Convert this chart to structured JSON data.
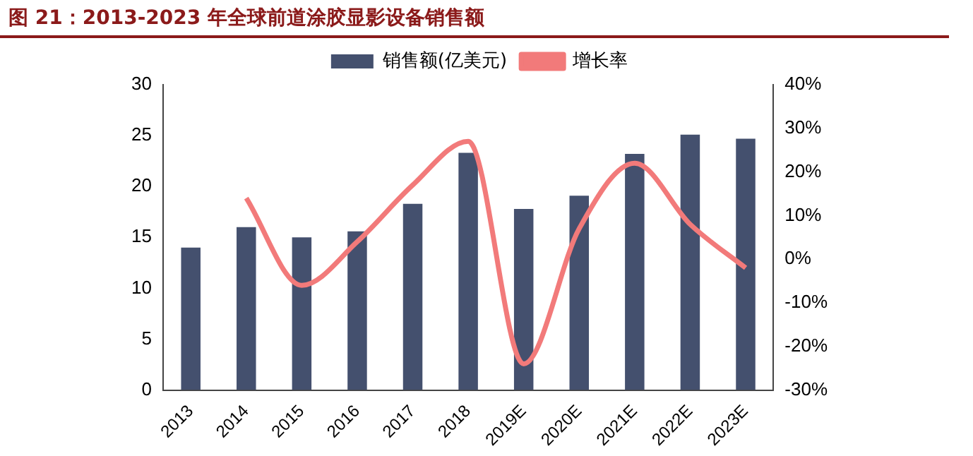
{
  "chart_data": {
    "type": "bar",
    "title": "图 21：2013-2023 年全球前道涂胶显影设备销售额",
    "categories": [
      "2013",
      "2014",
      "2015",
      "2016",
      "2017",
      "2018",
      "2019E",
      "2020E",
      "2021E",
      "2022E",
      "2023E"
    ],
    "series": [
      {
        "name": "销售额(亿美元)",
        "color": "#44506e",
        "values": [
          14,
          16,
          15,
          15.6,
          18.3,
          23.3,
          17.8,
          19.1,
          23.2,
          25.1,
          24.7
        ]
      },
      {
        "name": "增长率",
        "type": "line",
        "axis": "y2",
        "color": "#f27a7a",
        "values": [
          null,
          14,
          -6,
          4,
          17,
          27,
          -24,
          7,
          22,
          8,
          -2
        ]
      }
    ],
    "ylim": [
      0,
      30
    ],
    "yticks": [
      0,
      5,
      10,
      15,
      20,
      25,
      30
    ],
    "y2lim": [
      -30,
      40
    ],
    "y2ticks": [
      {
        "value": -30,
        "label": "-30%"
      },
      {
        "value": -20,
        "label": "-20%"
      },
      {
        "value": -10,
        "label": "-10%"
      },
      {
        "value": 0,
        "label": "0%"
      },
      {
        "value": 10,
        "label": "10%"
      },
      {
        "value": 20,
        "label": "20%"
      },
      {
        "value": 30,
        "label": "30%"
      },
      {
        "value": 40,
        "label": "40%"
      }
    ],
    "grid": false,
    "legend": "top",
    "marker": "none"
  }
}
